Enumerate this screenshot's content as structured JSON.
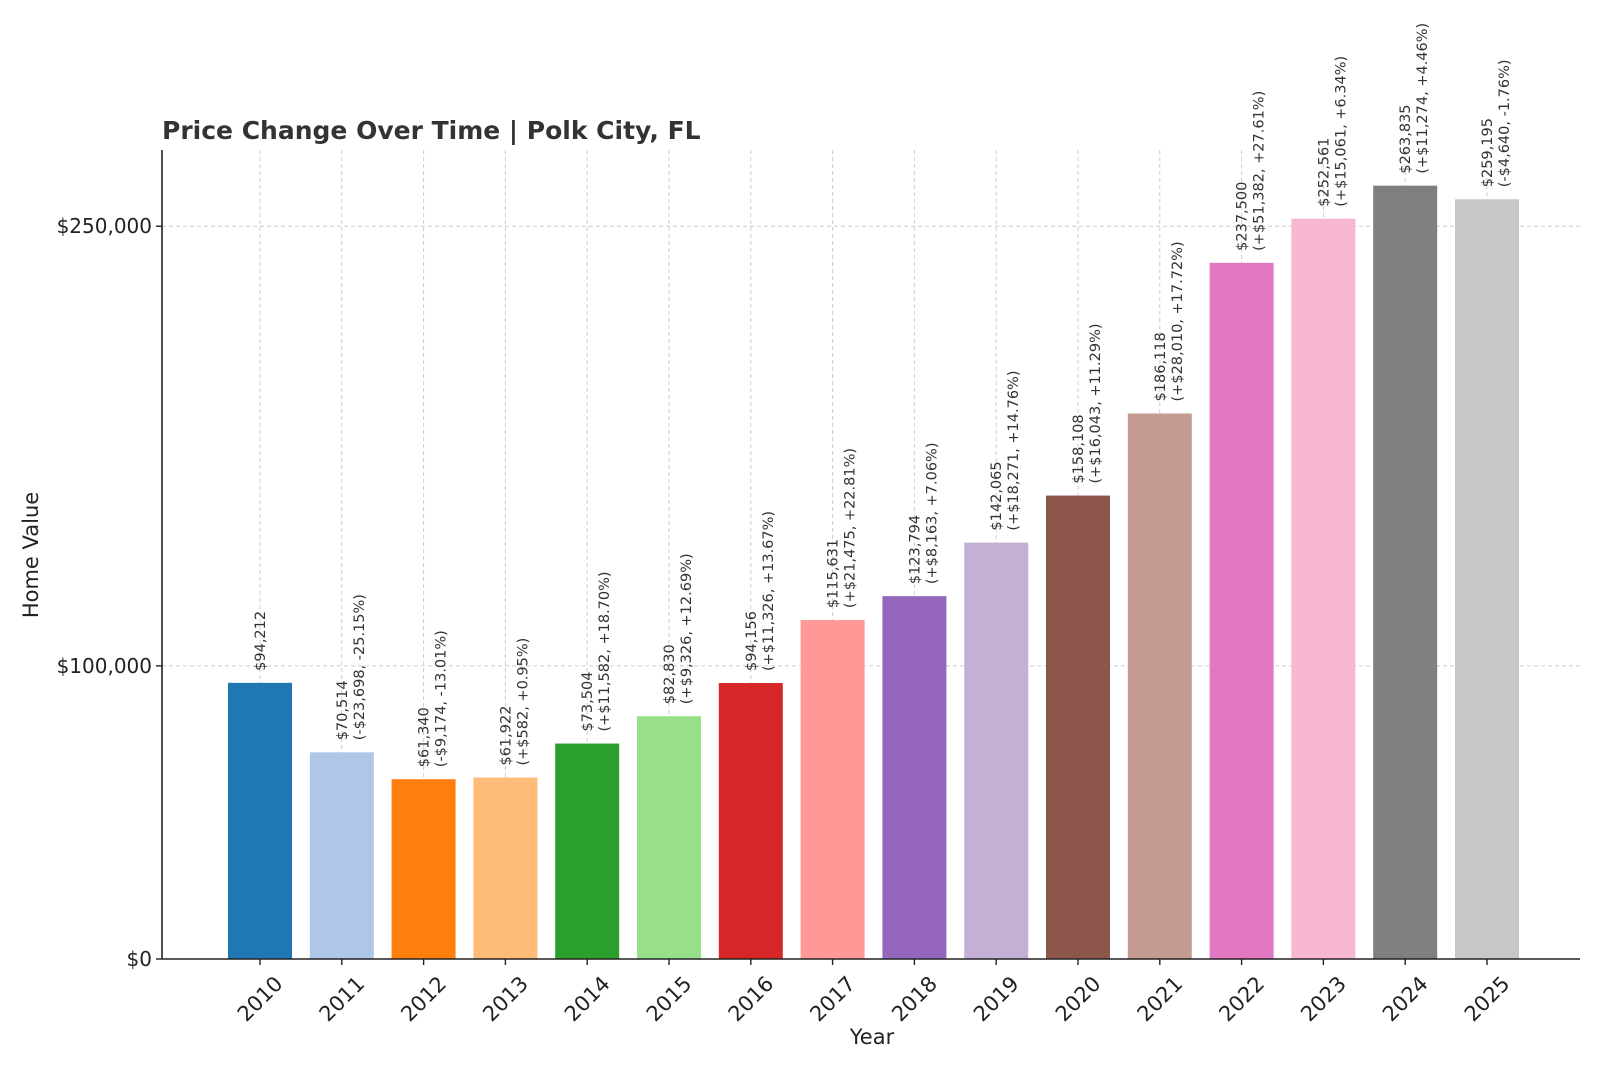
{
  "chart_data": {
    "type": "bar",
    "title": "Price Change Over Time | Polk City, FL",
    "xlabel": "Year",
    "ylabel": "Home Value",
    "categories": [
      "2010",
      "2011",
      "2012",
      "2013",
      "2014",
      "2015",
      "2016",
      "2017",
      "2018",
      "2019",
      "2020",
      "2021",
      "2022",
      "2023",
      "2024",
      "2025"
    ],
    "values": [
      94212,
      70514,
      61340,
      61922,
      73504,
      82830,
      94156,
      115631,
      123794,
      142065,
      158108,
      186118,
      237500,
      252561,
      263835,
      259195
    ],
    "value_labels": [
      "$94,212",
      "$70,514",
      "$61,340",
      "$61,922",
      "$73,504",
      "$82,830",
      "$94,156",
      "$115,631",
      "$123,794",
      "$142,065",
      "$158,108",
      "$186,118",
      "$237,500",
      "$252,561",
      "$263,835",
      "$259,195"
    ],
    "change_labels": [
      "",
      "(-$23,698, -25.15%)",
      "(-$9,174, -13.01%)",
      "(+$582, +0.95%)",
      "(+$11,582, +18.70%)",
      "(+$9,326, +12.69%)",
      "(+$11,326, +13.67%)",
      "(+$21,475, +22.81%)",
      "(+$8,163, +7.06%)",
      "(+$18,271, +14.76%)",
      "(+$16,043, +11.29%)",
      "(+$28,010, +17.72%)",
      "(+$51,382, +27.61%)",
      "(+$15,061, +6.34%)",
      "(+$11,274, +4.46%)",
      "(-$4,640, -1.76%)"
    ],
    "colors": [
      "#1f77b4",
      "#aec7e8",
      "#ff7f0e",
      "#ffbb78",
      "#2ca02c",
      "#98df8a",
      "#d62728",
      "#ff9896",
      "#9467bd",
      "#c5b0d5",
      "#8c564b",
      "#c49c94",
      "#e377c2",
      "#f7b6d2",
      "#7f7f7f",
      "#c7c7c7"
    ],
    "yticks": [
      0,
      100000,
      250000
    ],
    "ytick_labels": [
      "$0",
      "$100,000",
      "$250,000"
    ],
    "ylim": [
      0,
      276000
    ],
    "grid": true
  }
}
